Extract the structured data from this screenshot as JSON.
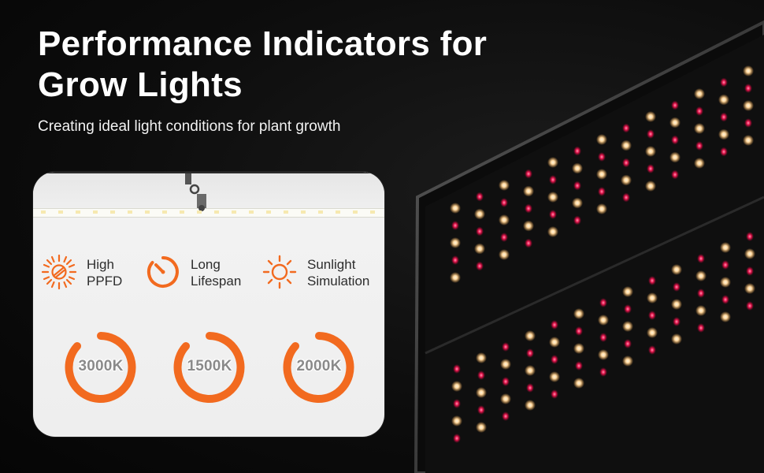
{
  "header": {
    "title_line1": "Performance Indicators for",
    "title_line2": "Grow Lights",
    "subtitle": "Creating ideal light conditions for plant growth"
  },
  "colors": {
    "accent": "#f26a1f",
    "warm_led": "#ffd9a0",
    "red_led": "#e8174f",
    "background": "#0d0d0d",
    "card": "#f1f1f1"
  },
  "features": [
    {
      "icon": "sun-burst-icon",
      "line1": "High",
      "line2": "PPFD"
    },
    {
      "icon": "timer-icon",
      "line1": "Long",
      "line2": "Lifespan"
    },
    {
      "icon": "sunlight-icon",
      "line1": "Sunlight",
      "line2": "Simulation"
    }
  ],
  "rings": [
    {
      "label": "3000K"
    },
    {
      "label": "1500K"
    },
    {
      "label": "2000K"
    }
  ]
}
